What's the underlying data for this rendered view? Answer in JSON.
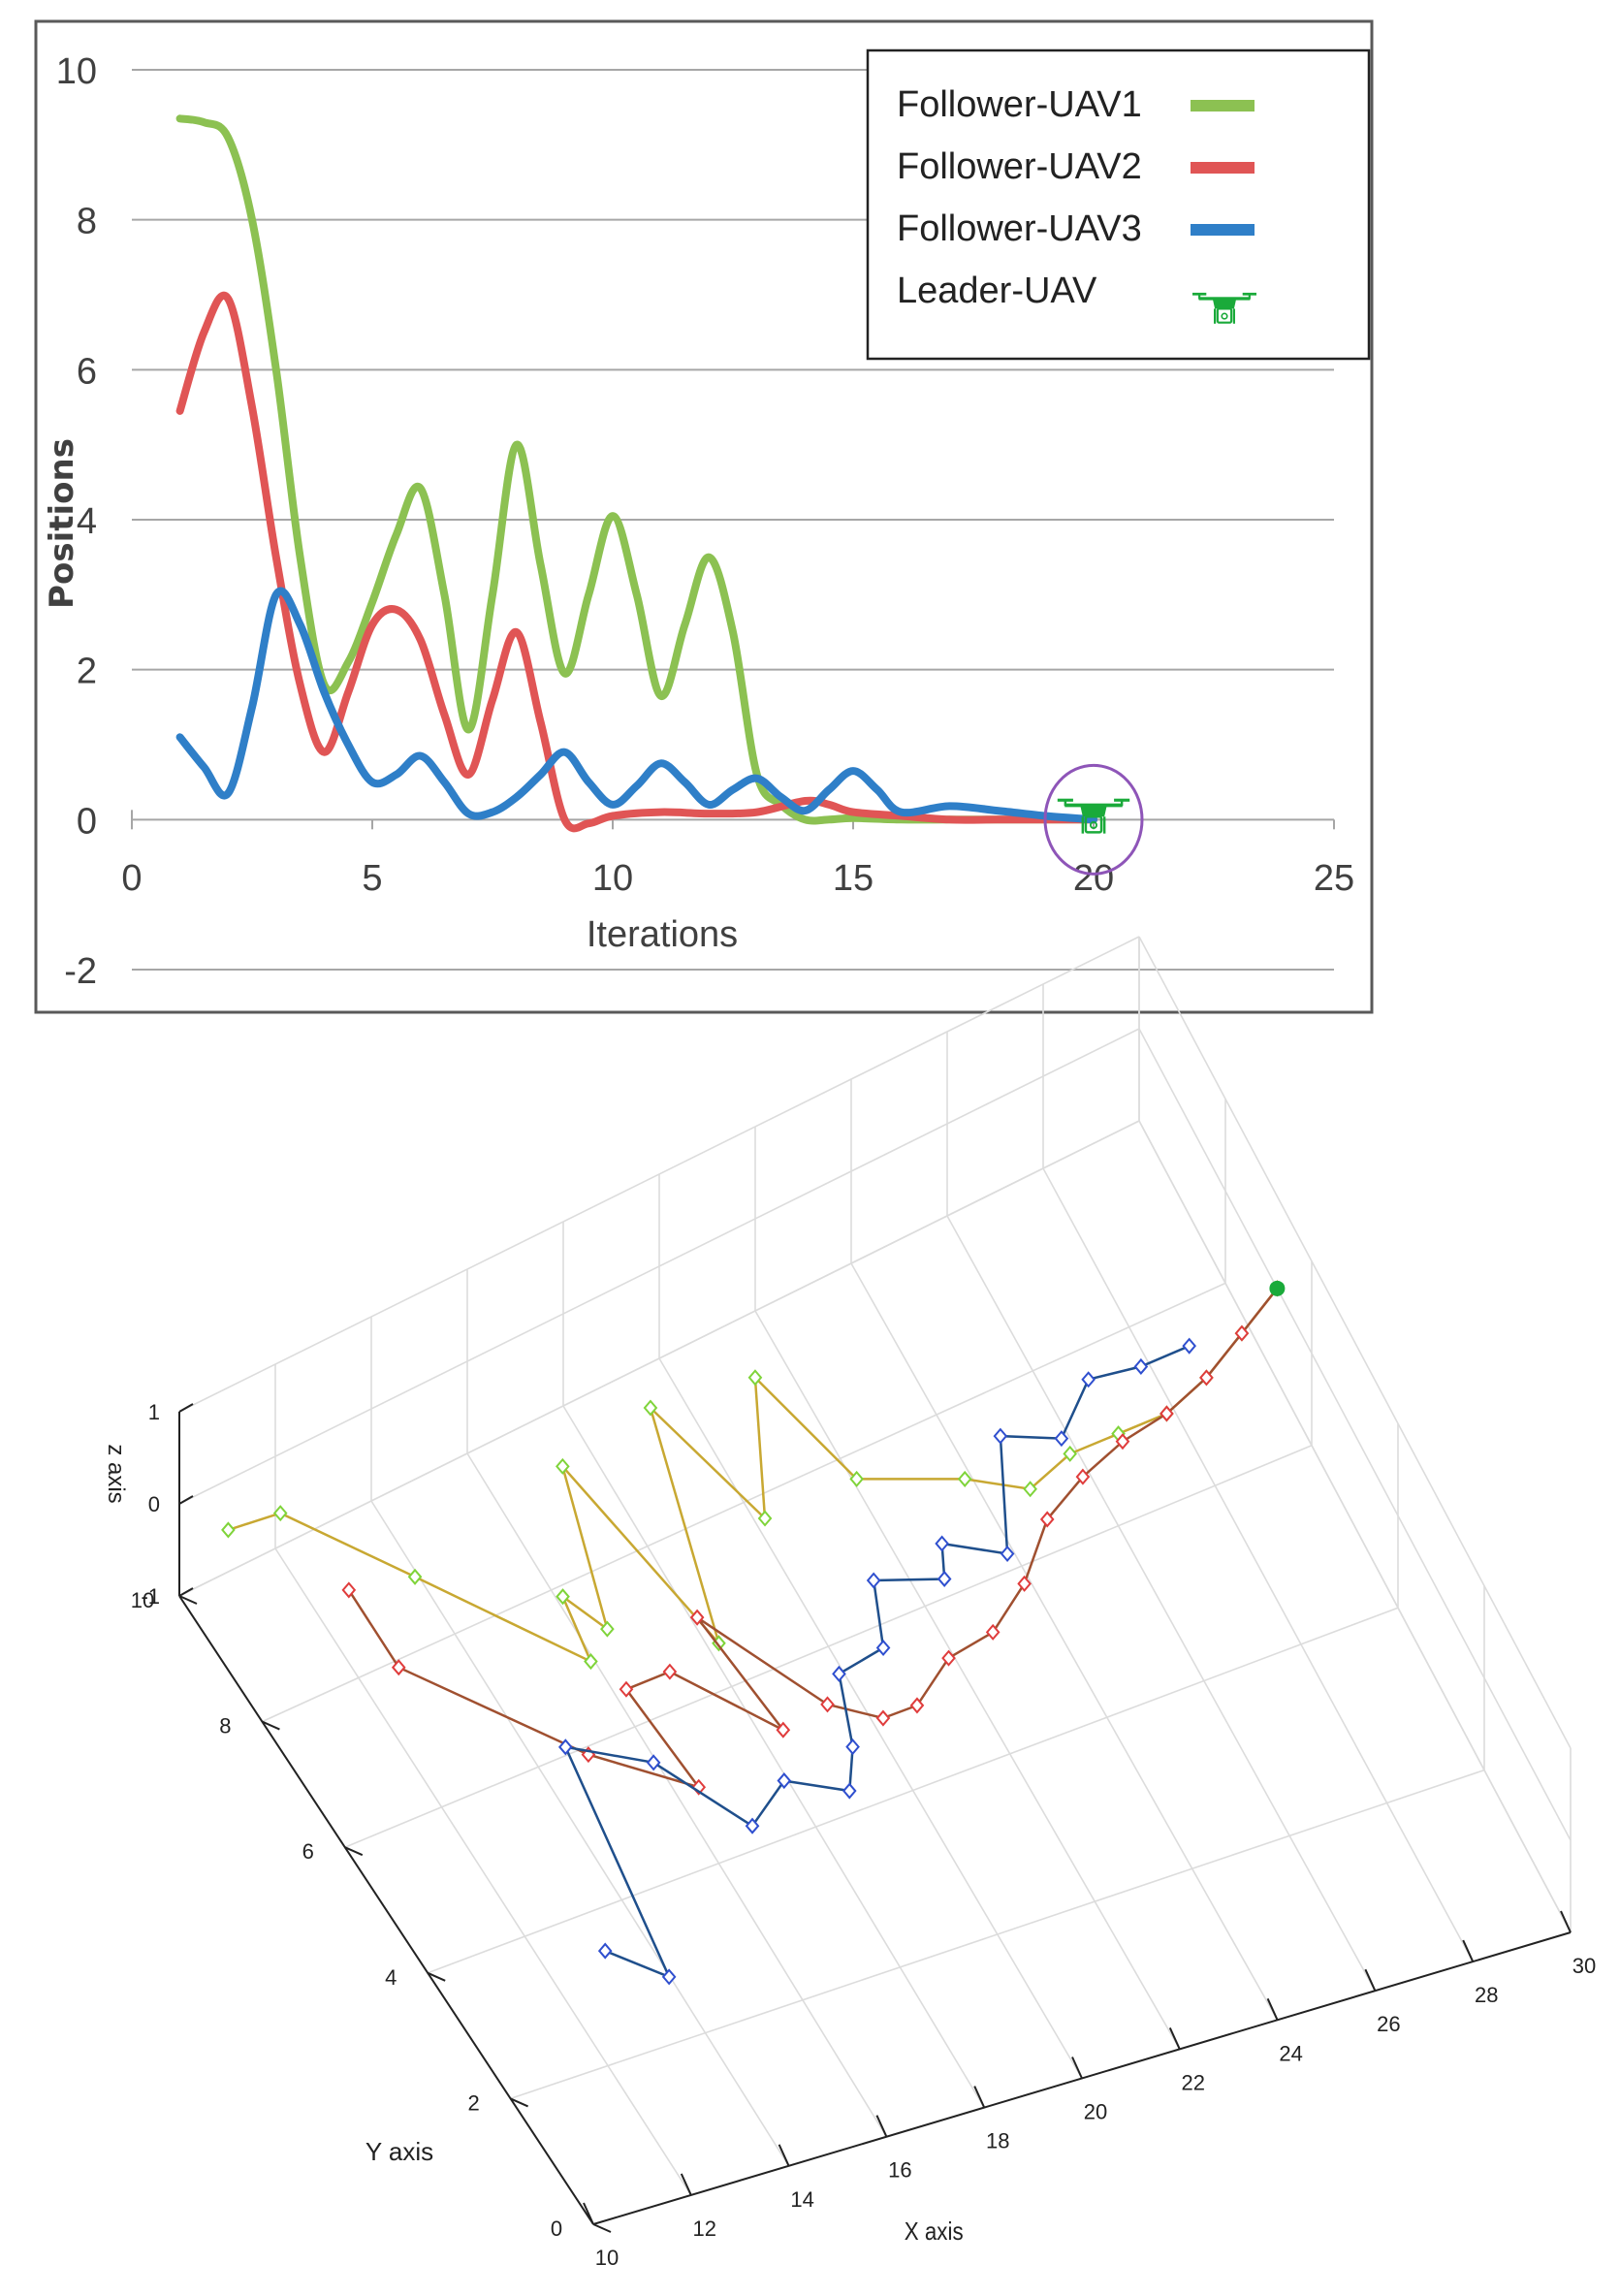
{
  "chart_data": [
    {
      "type": "line",
      "title": "",
      "xlabel": "Iterations",
      "ylabel": "Positions",
      "xlim": [
        0,
        25
      ],
      "ylim": [
        -2,
        10
      ],
      "x_ticks": [
        0,
        5,
        10,
        15,
        20,
        25
      ],
      "y_ticks": [
        -2,
        0,
        2,
        4,
        6,
        8,
        10
      ],
      "grid": true,
      "legend_position": "top-right",
      "series": [
        {
          "name": "Follower-UAV1",
          "color": "#8cc152",
          "points": [
            [
              1,
              9.35
            ],
            [
              1.5,
              9.3
            ],
            [
              2,
              9.1
            ],
            [
              2.5,
              8.0
            ],
            [
              3,
              6.0
            ],
            [
              3.5,
              3.5
            ],
            [
              4,
              1.8
            ],
            [
              4.5,
              2.1
            ],
            [
              5,
              2.9
            ],
            [
              5.5,
              3.8
            ],
            [
              6,
              4.42
            ],
            [
              6.5,
              3.0
            ],
            [
              7,
              1.2
            ],
            [
              7.5,
              3.0
            ],
            [
              8,
              5.0
            ],
            [
              8.5,
              3.4
            ],
            [
              9,
              1.95
            ],
            [
              9.5,
              3.0
            ],
            [
              10,
              4.05
            ],
            [
              10.5,
              3.0
            ],
            [
              11,
              1.65
            ],
            [
              11.5,
              2.6
            ],
            [
              12,
              3.5
            ],
            [
              12.5,
              2.5
            ],
            [
              13,
              0.6
            ],
            [
              13.5,
              0.2
            ],
            [
              14,
              0.0
            ],
            [
              14.5,
              0.0
            ],
            [
              15,
              0.02
            ],
            [
              16,
              0.0
            ],
            [
              17,
              0.0
            ],
            [
              18,
              0.0
            ],
            [
              19,
              0.0
            ],
            [
              20,
              0.0
            ]
          ]
        },
        {
          "name": "Follower-UAV2",
          "color": "#e05555",
          "points": [
            [
              1,
              5.45
            ],
            [
              1.5,
              6.5
            ],
            [
              2,
              6.95
            ],
            [
              2.5,
              5.5
            ],
            [
              3,
              3.5
            ],
            [
              3.5,
              1.8
            ],
            [
              4,
              0.9
            ],
            [
              4.5,
              1.7
            ],
            [
              5,
              2.6
            ],
            [
              5.5,
              2.8
            ],
            [
              6,
              2.4
            ],
            [
              6.5,
              1.4
            ],
            [
              7,
              0.6
            ],
            [
              7.5,
              1.6
            ],
            [
              8,
              2.5
            ],
            [
              8.5,
              1.3
            ],
            [
              9,
              0.0
            ],
            [
              9.5,
              -0.05
            ],
            [
              10,
              0.05
            ],
            [
              11,
              0.1
            ],
            [
              12,
              0.08
            ],
            [
              13,
              0.1
            ],
            [
              14,
              0.25
            ],
            [
              14.5,
              0.2
            ],
            [
              15,
              0.1
            ],
            [
              16,
              0.05
            ],
            [
              17,
              0.0
            ],
            [
              18,
              0.0
            ],
            [
              19,
              0.0
            ],
            [
              20,
              0.0
            ]
          ]
        },
        {
          "name": "Follower-UAV3",
          "color": "#2f7fc8",
          "points": [
            [
              1,
              1.1
            ],
            [
              1.5,
              0.7
            ],
            [
              2,
              0.35
            ],
            [
              2.5,
              1.5
            ],
            [
              3,
              3.0
            ],
            [
              3.5,
              2.6
            ],
            [
              4,
              1.7
            ],
            [
              4.5,
              1.0
            ],
            [
              5,
              0.5
            ],
            [
              5.5,
              0.6
            ],
            [
              6,
              0.85
            ],
            [
              6.5,
              0.5
            ],
            [
              7,
              0.08
            ],
            [
              7.5,
              0.1
            ],
            [
              8,
              0.3
            ],
            [
              8.5,
              0.6
            ],
            [
              9,
              0.9
            ],
            [
              9.5,
              0.5
            ],
            [
              10,
              0.2
            ],
            [
              10.5,
              0.45
            ],
            [
              11,
              0.75
            ],
            [
              11.5,
              0.5
            ],
            [
              12,
              0.2
            ],
            [
              12.5,
              0.4
            ],
            [
              13,
              0.55
            ],
            [
              13.5,
              0.3
            ],
            [
              14,
              0.12
            ],
            [
              14.5,
              0.4
            ],
            [
              15,
              0.65
            ],
            [
              15.5,
              0.4
            ],
            [
              16,
              0.1
            ],
            [
              17,
              0.18
            ],
            [
              18,
              0.12
            ],
            [
              19,
              0.05
            ],
            [
              20,
              0.0
            ]
          ]
        }
      ],
      "leader": {
        "name": "Leader-UAV",
        "x": 20,
        "y": 0,
        "color": "#1aaa3a",
        "marker": "drone-icon",
        "highlight_color": "#8e55b8"
      }
    },
    {
      "type": "line3d",
      "title": "",
      "xlabel": "X axis",
      "ylabel": "Y axis",
      "zlabel": "z axis",
      "xlim": [
        10,
        30
      ],
      "ylim": [
        0,
        10
      ],
      "zlim": [
        -1,
        1
      ],
      "x_ticks": [
        10,
        12,
        14,
        16,
        18,
        20,
        22,
        24,
        26,
        28,
        30
      ],
      "y_ticks": [
        0,
        2,
        4,
        6,
        8,
        10
      ],
      "z_ticks": [
        -1,
        0,
        1
      ],
      "grid": true,
      "series": [
        {
          "name": "Follower-UAV1",
          "line_color": "#c8a832",
          "marker_color": "#7fd43a",
          "points": [
            [
              10.5,
              9.4
            ],
            [
              11.5,
              9.3
            ],
            [
              13,
              7.8
            ],
            [
              15,
              5.9
            ],
            [
              15.2,
              6.8
            ],
            [
              15.6,
              6.2
            ],
            [
              16.5,
              8.3
            ],
            [
              17.3,
              5.5
            ],
            [
              18.5,
              8.5
            ],
            [
              19.3,
              6.7
            ],
            [
              20.5,
              8.3
            ],
            [
              21.2,
              6.7
            ],
            [
              23,
              6.2
            ],
            [
              24,
              5.8
            ],
            [
              25,
              6.0
            ],
            [
              26,
              6.0
            ],
            [
              27,
              6.0
            ],
            [
              28,
              6.2
            ],
            [
              29,
              6.5
            ],
            [
              30,
              6.8
            ]
          ]
        },
        {
          "name": "Follower-UAV2",
          "line_color": "#a05030",
          "marker_color": "#e03c3c",
          "points": [
            [
              11.8,
              8.0
            ],
            [
              11.8,
              6.8
            ],
            [
              14,
              4.8
            ],
            [
              15.5,
              3.9
            ],
            [
              15.3,
              5.4
            ],
            [
              16.2,
              5.4
            ],
            [
              17.5,
              4.2
            ],
            [
              17.2,
              5.9
            ],
            [
              18.5,
              4.3
            ],
            [
              19.3,
              3.9
            ],
            [
              20,
              3.9
            ],
            [
              21,
              4.3
            ],
            [
              22,
              4.4
            ],
            [
              23,
              4.8
            ],
            [
              24,
              5.4
            ],
            [
              25,
              5.7
            ],
            [
              26,
              5.9
            ],
            [
              27,
              6.0
            ],
            [
              28,
              6.2
            ],
            [
              29,
              6.5
            ],
            [
              30,
              6.8
            ]
          ]
        },
        {
          "name": "Follower-UAV3",
          "line_color": "#1f4f8c",
          "marker_color": "#2f4fcf",
          "points": [
            [
              12.2,
              2.3
            ],
            [
              13,
              1.7
            ],
            [
              13.7,
              5.0
            ],
            [
              15,
              4.4
            ],
            [
              16,
              3.2
            ],
            [
              17,
              3.6
            ],
            [
              18,
              3.2
            ],
            [
              18.5,
              3.7
            ],
            [
              19,
              4.6
            ],
            [
              20,
              4.7
            ],
            [
              20.5,
              5.5
            ],
            [
              21.7,
              5.2
            ],
            [
              22,
              5.6
            ],
            [
              23,
              5.2
            ],
            [
              24,
              6.5
            ],
            [
              25,
              6.2
            ],
            [
              26,
              6.7
            ],
            [
              27,
              6.6
            ],
            [
              28,
              6.6
            ]
          ]
        }
      ],
      "end_point": {
        "x": 30,
        "y": 6.8,
        "color": "#1aaa3a"
      }
    }
  ]
}
